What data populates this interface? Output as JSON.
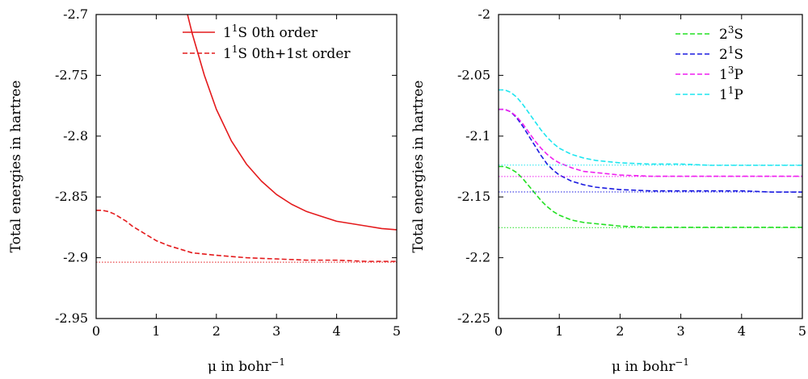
{
  "chart_data": [
    {
      "type": "line",
      "xlabel": "μ in bohr⁻¹",
      "ylabel": "Total energies in hartree",
      "xlim": [
        0,
        5
      ],
      "ylim": [
        -2.95,
        -2.7
      ],
      "xticks": [
        "0",
        "1",
        "2",
        "3",
        "4",
        "5"
      ],
      "yticks": [
        "-2.7",
        "-2.75",
        "-2.8",
        "-2.85",
        "-2.9",
        "-2.95"
      ],
      "grid": false,
      "legend": "top-right",
      "series": [
        {
          "name": "1¹S 0th order",
          "color": "#e41a1c",
          "style": "solid",
          "x": [
            1.45,
            1.6,
            1.8,
            2.0,
            2.25,
            2.5,
            2.75,
            3.0,
            3.25,
            3.5,
            3.75,
            4.0,
            4.25,
            4.5,
            4.75,
            5.0
          ],
          "y": [
            -2.686,
            -2.716,
            -2.75,
            -2.778,
            -2.804,
            -2.823,
            -2.837,
            -2.848,
            -2.856,
            -2.862,
            -2.866,
            -2.87,
            -2.872,
            -2.874,
            -2.876,
            -2.877
          ]
        },
        {
          "name": "1¹S 0th+1st order",
          "color": "#e41a1c",
          "style": "dashed",
          "x": [
            0,
            0.1,
            0.2,
            0.3,
            0.4,
            0.5,
            0.6,
            0.7,
            0.8,
            0.9,
            1.0,
            1.2,
            1.4,
            1.6,
            1.8,
            2.0,
            2.5,
            3.0,
            3.5,
            4.0,
            4.5,
            5.0
          ],
          "y": [
            -2.861,
            -2.861,
            -2.862,
            -2.864,
            -2.867,
            -2.87,
            -2.874,
            -2.877,
            -2.88,
            -2.883,
            -2.886,
            -2.89,
            -2.893,
            -2.896,
            -2.897,
            -2.898,
            -2.9,
            -2.901,
            -2.902,
            -2.902,
            -2.903,
            -2.903
          ]
        },
        {
          "name": "",
          "color": "#e41a1c",
          "style": "dotted",
          "x": [
            0,
            5
          ],
          "y": [
            -2.9037,
            -2.9037
          ]
        }
      ]
    },
    {
      "type": "line",
      "xlabel": "μ in bohr⁻¹",
      "ylabel": "Total energies in hartree",
      "xlim": [
        0,
        5
      ],
      "ylim": [
        -2.25,
        -2.0
      ],
      "xticks": [
        "0",
        "1",
        "2",
        "3",
        "4",
        "5"
      ],
      "yticks": [
        "-2",
        "-2.05",
        "-2.1",
        "-2.15",
        "-2.2",
        "-2.25"
      ],
      "grid": false,
      "legend": "top-right",
      "series": [
        {
          "name": "2³S",
          "color": "#22e022",
          "style": "dashed",
          "x": [
            0,
            0.1,
            0.2,
            0.3,
            0.4,
            0.5,
            0.6,
            0.7,
            0.8,
            0.9,
            1.0,
            1.2,
            1.4,
            1.6,
            1.8,
            2.0,
            2.5,
            3.0,
            3.5,
            4.0,
            4.5,
            5.0
          ],
          "y": [
            -2.125,
            -2.125,
            -2.127,
            -2.13,
            -2.135,
            -2.141,
            -2.147,
            -2.153,
            -2.158,
            -2.162,
            -2.165,
            -2.169,
            -2.171,
            -2.172,
            -2.173,
            -2.174,
            -2.175,
            -2.175,
            -2.175,
            -2.175,
            -2.175,
            -2.175
          ]
        },
        {
          "name": "2¹S",
          "color": "#1a1ae0",
          "style": "dashed",
          "x": [
            0,
            0.1,
            0.2,
            0.3,
            0.4,
            0.5,
            0.6,
            0.7,
            0.8,
            0.9,
            1.0,
            1.2,
            1.4,
            1.6,
            1.8,
            2.0,
            2.5,
            3.0,
            3.5,
            4.0,
            4.5,
            5.0
          ],
          "y": [
            -2.078,
            -2.078,
            -2.08,
            -2.085,
            -2.092,
            -2.1,
            -2.108,
            -2.116,
            -2.123,
            -2.128,
            -2.132,
            -2.137,
            -2.14,
            -2.142,
            -2.143,
            -2.144,
            -2.145,
            -2.145,
            -2.145,
            -2.145,
            -2.146,
            -2.146
          ]
        },
        {
          "name": "1³P",
          "color": "#f01ef0",
          "style": "dashed",
          "x": [
            0,
            0.1,
            0.2,
            0.3,
            0.4,
            0.5,
            0.6,
            0.7,
            0.8,
            0.9,
            1.0,
            1.2,
            1.4,
            1.6,
            1.8,
            2.0,
            2.5,
            3.0,
            3.5,
            4.0,
            4.5,
            5.0
          ],
          "y": [
            -2.078,
            -2.078,
            -2.08,
            -2.084,
            -2.09,
            -2.097,
            -2.104,
            -2.11,
            -2.115,
            -2.119,
            -2.122,
            -2.126,
            -2.129,
            -2.13,
            -2.131,
            -2.132,
            -2.133,
            -2.133,
            -2.133,
            -2.133,
            -2.133,
            -2.133
          ]
        },
        {
          "name": "1¹P",
          "color": "#1ee6f0",
          "style": "dashed",
          "x": [
            0,
            0.1,
            0.2,
            0.3,
            0.4,
            0.5,
            0.6,
            0.7,
            0.8,
            0.9,
            1.0,
            1.2,
            1.4,
            1.6,
            1.8,
            2.0,
            2.5,
            3.0,
            3.5,
            4.0,
            4.5,
            5.0
          ],
          "y": [
            -2.062,
            -2.062,
            -2.064,
            -2.068,
            -2.074,
            -2.081,
            -2.088,
            -2.095,
            -2.101,
            -2.106,
            -2.11,
            -2.115,
            -2.118,
            -2.12,
            -2.121,
            -2.122,
            -2.123,
            -2.123,
            -2.124,
            -2.124,
            -2.124,
            -2.124
          ]
        },
        {
          "name": "",
          "color": "#22e022",
          "style": "dotted",
          "x": [
            0,
            5
          ],
          "y": [
            -2.1752,
            -2.1752
          ]
        },
        {
          "name": "",
          "color": "#1a1ae0",
          "style": "dotted",
          "x": [
            0,
            5
          ],
          "y": [
            -2.1459,
            -2.1459
          ]
        },
        {
          "name": "",
          "color": "#f01ef0",
          "style": "dotted",
          "x": [
            0,
            5
          ],
          "y": [
            -2.1332,
            -2.1332
          ]
        },
        {
          "name": "",
          "color": "#1ee6f0",
          "style": "dotted",
          "x": [
            0,
            5
          ],
          "y": [
            -2.1238,
            -2.1238
          ]
        }
      ]
    }
  ]
}
